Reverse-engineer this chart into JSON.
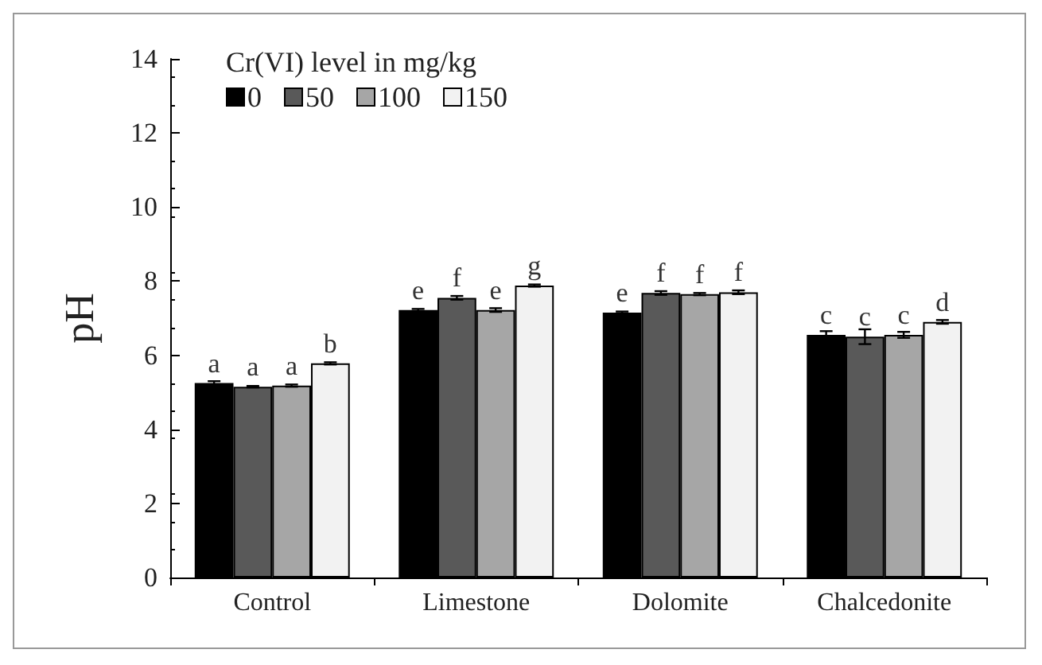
{
  "chart_data": {
    "type": "bar",
    "ylabel": "pH",
    "legend_title": "Cr(VI) level in mg/kg",
    "legend": "top left",
    "grid": false,
    "categories": [
      "Control",
      "Limestone",
      "Dolomite",
      "Chalcedonite"
    ],
    "ylim": [
      0,
      14
    ],
    "yticks": [
      0,
      2,
      4,
      6,
      8,
      10,
      12,
      14
    ],
    "series": [
      {
        "name": "0",
        "color": "#000000",
        "values": [
          5.25,
          7.22,
          7.15,
          6.55
        ],
        "errors": [
          0.05,
          0.03,
          0.03,
          0.1
        ],
        "value_labels": [
          "a",
          "e",
          "e",
          "c"
        ]
      },
      {
        "name": "50",
        "color": "#595959",
        "values": [
          5.15,
          7.55,
          7.68,
          6.5
        ],
        "errors": [
          0.02,
          0.05,
          0.05,
          0.2
        ],
        "value_labels": [
          "a",
          "f",
          "f",
          "c"
        ]
      },
      {
        "name": "100",
        "color": "#a6a6a6",
        "values": [
          5.18,
          7.22,
          7.65,
          6.55
        ],
        "errors": [
          0.03,
          0.05,
          0.03,
          0.08
        ],
        "value_labels": [
          "a",
          "e",
          "f",
          "c"
        ]
      },
      {
        "name": "150",
        "color": "#f2f2f2",
        "values": [
          5.78,
          7.88,
          7.7,
          6.9
        ],
        "errors": [
          0.03,
          0.03,
          0.05,
          0.05
        ],
        "value_labels": [
          "b",
          "g",
          "f",
          "d"
        ]
      }
    ]
  }
}
